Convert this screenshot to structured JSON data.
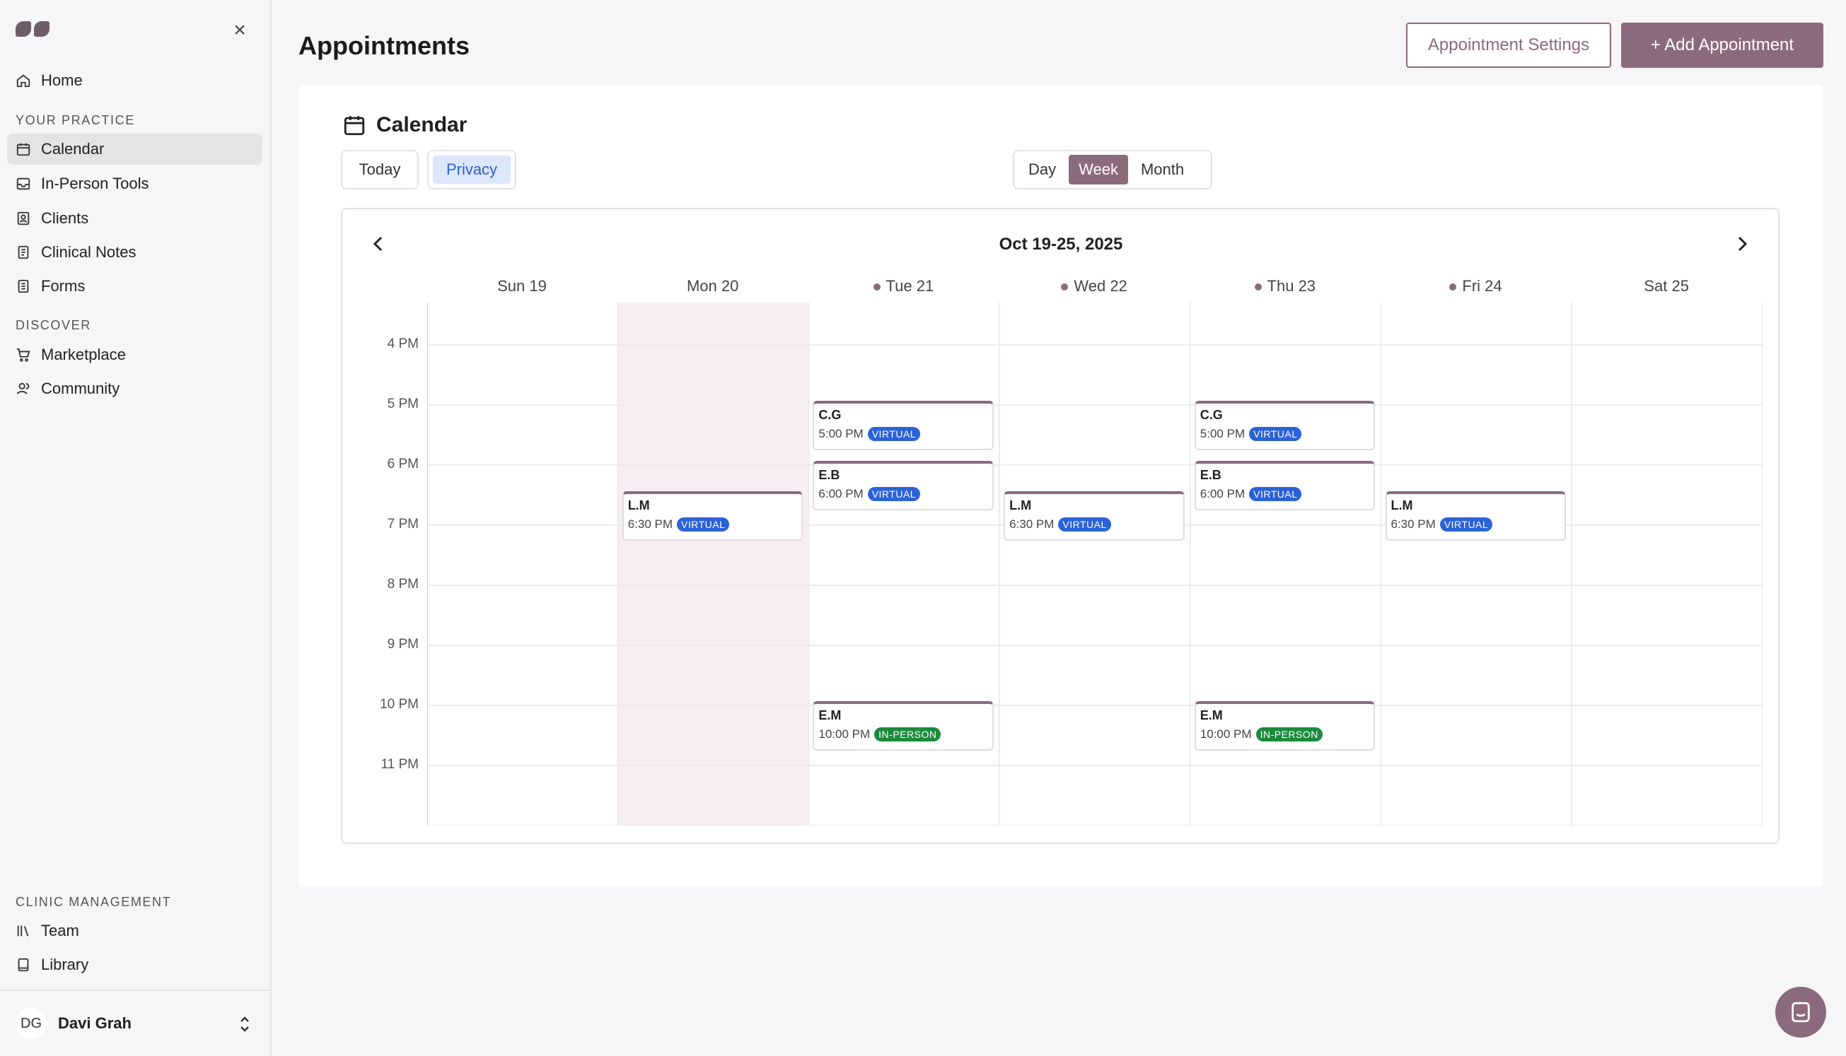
{
  "sidebar": {
    "nav_top": [
      {
        "label": "Home",
        "icon": "home-icon"
      }
    ],
    "section_practice": "YOUR PRACTICE",
    "practice_items": [
      {
        "label": "Calendar",
        "icon": "calendar-icon",
        "active": true
      },
      {
        "label": "In-Person Tools",
        "icon": "inbox-icon"
      },
      {
        "label": "Clients",
        "icon": "contact-book-icon"
      },
      {
        "label": "Clinical Notes",
        "icon": "notes-icon"
      },
      {
        "label": "Forms",
        "icon": "form-icon"
      }
    ],
    "section_discover": "DISCOVER",
    "discover_items": [
      {
        "label": "Marketplace",
        "icon": "cart-icon"
      },
      {
        "label": "Community",
        "icon": "people-icon"
      }
    ],
    "section_clinic": "CLINIC MANAGEMENT",
    "clinic_items": [
      {
        "label": "Team",
        "icon": "library-stacks-icon"
      },
      {
        "label": "Library",
        "icon": "book-icon"
      }
    ],
    "user": {
      "initials": "DG",
      "name": "Davi Grah"
    }
  },
  "header": {
    "title": "Appointments",
    "settings_label": "Appointment Settings",
    "add_label": "+ Add Appointment"
  },
  "calendar": {
    "title": "Calendar",
    "today_label": "Today",
    "privacy_label": "Privacy",
    "views": [
      "Day",
      "Week",
      "Month"
    ],
    "active_view": "Week",
    "week_label": "Oct 19-25, 2025",
    "days": [
      {
        "label": "Sun 19",
        "dot": false
      },
      {
        "label": "Mon 20",
        "dot": false
      },
      {
        "label": "Tue 21",
        "dot": true
      },
      {
        "label": "Wed 22",
        "dot": true
      },
      {
        "label": "Thu 23",
        "dot": true
      },
      {
        "label": "Fri 24",
        "dot": true
      },
      {
        "label": "Sat 25",
        "dot": false
      }
    ],
    "hours": [
      "4 PM",
      "5 PM",
      "6 PM",
      "7 PM",
      "8 PM",
      "9 PM",
      "10 PM",
      "11 PM"
    ],
    "events": [
      {
        "day": 1,
        "name": "L.M",
        "time": "6:30 PM",
        "type": "VIRTUAL"
      },
      {
        "day": 2,
        "name": "C.G",
        "time": "5:00 PM",
        "type": "VIRTUAL"
      },
      {
        "day": 2,
        "name": "E.B",
        "time": "6:00 PM",
        "type": "VIRTUAL"
      },
      {
        "day": 2,
        "name": "E.M",
        "time": "10:00 PM",
        "type": "IN-PERSON"
      },
      {
        "day": 3,
        "name": "L.M",
        "time": "6:30 PM",
        "type": "VIRTUAL"
      },
      {
        "day": 4,
        "name": "C.G",
        "time": "5:00 PM",
        "type": "VIRTUAL"
      },
      {
        "day": 4,
        "name": "E.B",
        "time": "6:00 PM",
        "type": "VIRTUAL"
      },
      {
        "day": 4,
        "name": "E.M",
        "time": "10:00 PM",
        "type": "IN-PERSON"
      },
      {
        "day": 5,
        "name": "L.M",
        "time": "6:30 PM",
        "type": "VIRTUAL"
      }
    ],
    "colors": {
      "accent": "#8c6a7e",
      "virtual": "#2b62d8",
      "in_person": "#1b8a3c",
      "today_column": "#f8edf3"
    }
  }
}
